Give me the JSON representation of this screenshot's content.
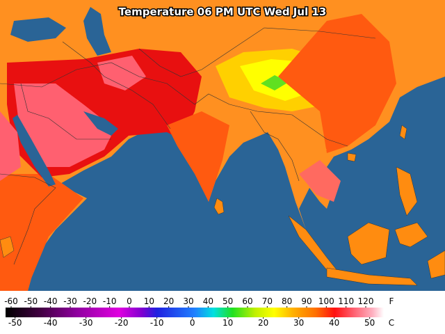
{
  "title": "Temperature 06 PM UTC Wed Jul 13",
  "legend": {
    "fahrenheit": {
      "unit": "F",
      "ticks": [
        -60,
        -50,
        -40,
        -30,
        -20,
        -10,
        0,
        10,
        20,
        30,
        40,
        50,
        60,
        70,
        80,
        90,
        100,
        110,
        120
      ]
    },
    "celsius": {
      "unit": "C",
      "ticks": [
        -50,
        -40,
        -30,
        -20,
        -10,
        0,
        10,
        20,
        30,
        40,
        50
      ]
    }
  }
}
